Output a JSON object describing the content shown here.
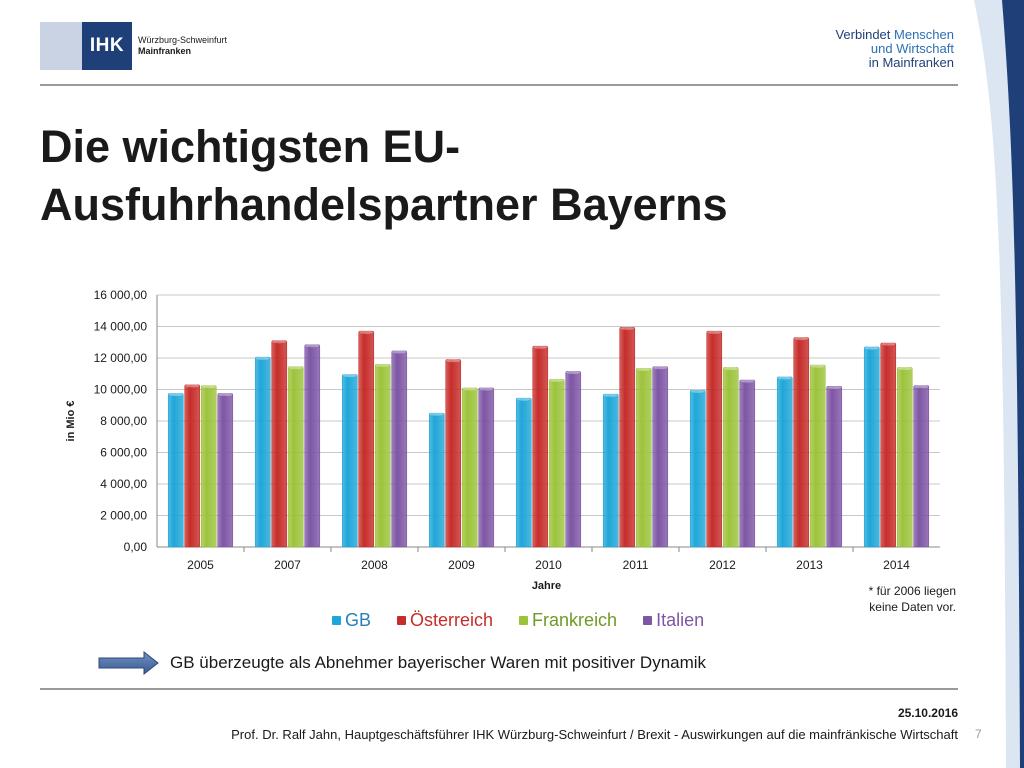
{
  "header": {
    "logo_abbr": "IHK",
    "logo_line1": "Würzburg-Schweinfurt",
    "logo_line2": "Mainfranken",
    "tagline_line1": "Verbindet",
    "tagline_line1_accent": "Menschen",
    "tagline_line2": "und Wirtschaft",
    "tagline_line3": "in Mainfranken"
  },
  "slide": {
    "title_line1": "Die wichtigsten EU-",
    "title_line2": "Ausfuhrhandelspartner Bayerns",
    "footnote_line1": "* für 2006 liegen",
    "footnote_line2": "keine Daten vor.",
    "conclusion": "GB überzeugte als Abnehmer bayerischer Waren mit positiver Dynamik"
  },
  "footer": {
    "date": "25.10.2016",
    "text": "Prof. Dr. Ralf Jahn, Hauptgeschäftsführer IHK Würzburg-Schweinfurt / Brexit - Auswirkungen auf die mainfränkische Wirtschaft",
    "page": "7"
  },
  "colors": {
    "brand_blue": "#1f3f78",
    "arrow": "#4a6fa5",
    "GB": "#1fa6d8",
    "Österreich": "#c62d2a",
    "Frankreich": "#9cc33b",
    "Italien": "#7e56a5"
  },
  "chart_data": {
    "type": "bar",
    "categories": [
      "2005",
      "2007",
      "2008",
      "2009",
      "2010",
      "2011",
      "2012",
      "2013",
      "2014"
    ],
    "series": [
      {
        "name": "GB",
        "values": [
          9750,
          12050,
          10950,
          8500,
          9450,
          9700,
          9950,
          10800,
          12700
        ]
      },
      {
        "name": "Österreich",
        "values": [
          10300,
          13100,
          13700,
          11900,
          12750,
          13950,
          13700,
          13300,
          12950
        ]
      },
      {
        "name": "Frankreich",
        "values": [
          10250,
          11450,
          11600,
          10100,
          10650,
          11350,
          11400,
          11550,
          11400
        ]
      },
      {
        "name": "Italien",
        "values": [
          9750,
          12850,
          12450,
          10100,
          11150,
          11450,
          10600,
          10200,
          10250
        ]
      }
    ],
    "yticks": [
      "0,00",
      "2 000,00",
      "4 000,00",
      "6 000,00",
      "8 000,00",
      "10 000,00",
      "12 000,00",
      "14 000,00",
      "16 000,00"
    ],
    "xlabel": "Jahre",
    "ylabel": "in Mio €",
    "ylim": [
      0,
      16000
    ],
    "grid": true,
    "legend": "bottom"
  }
}
